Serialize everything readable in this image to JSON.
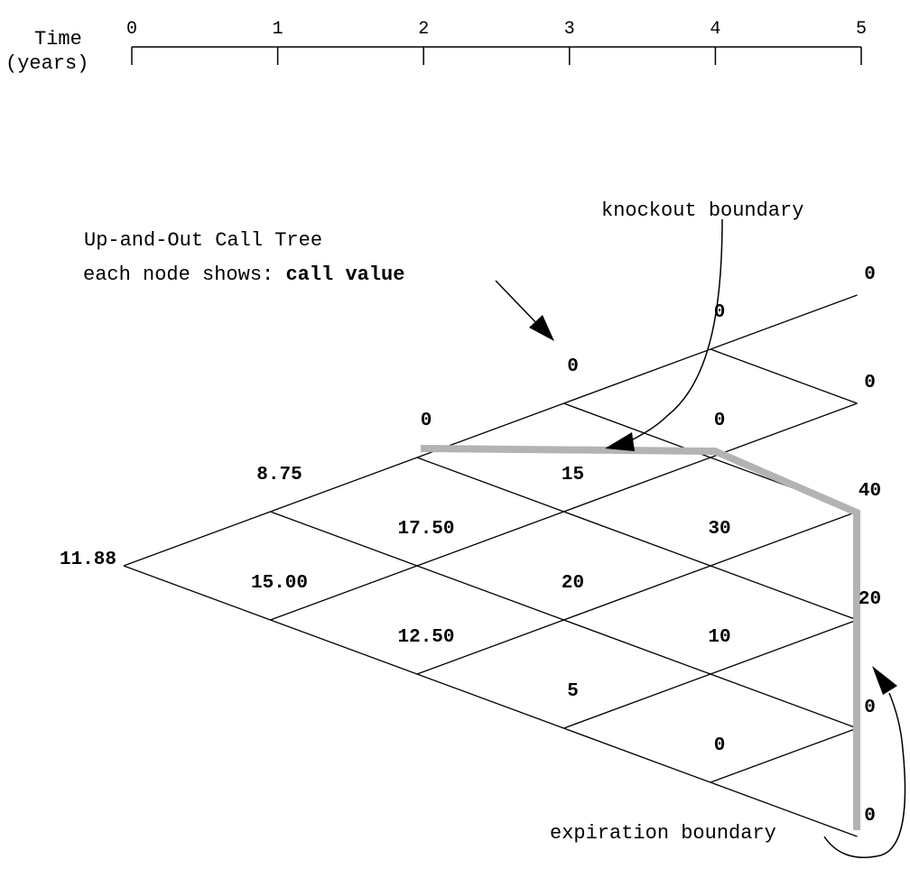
{
  "timeline": {
    "axis_label_line1": "Time",
    "axis_label_line2": "(years)",
    "ticks": [
      "0",
      "1",
      "2",
      "3",
      "4",
      "5"
    ]
  },
  "annotations": {
    "title_line1": "Up-and-Out Call Tree",
    "title_line2_prefix": "each node shows: ",
    "title_line2_bold": "call value",
    "knockout_label": "knockout boundary",
    "expiration_label": "expiration boundary"
  },
  "tree": {
    "steps": 5,
    "node_values": [
      [
        "11.88"
      ],
      [
        "15.00",
        "8.75"
      ],
      [
        "12.50",
        "17.50",
        "0"
      ],
      [
        "5",
        "20",
        "15",
        "0"
      ],
      [
        "0",
        "10",
        "30",
        "0",
        "0"
      ],
      [
        "0",
        "0",
        "20",
        "40",
        "0",
        "0"
      ]
    ]
  },
  "colors": {
    "line": "#000000",
    "boundary": "#b3b3b3"
  }
}
